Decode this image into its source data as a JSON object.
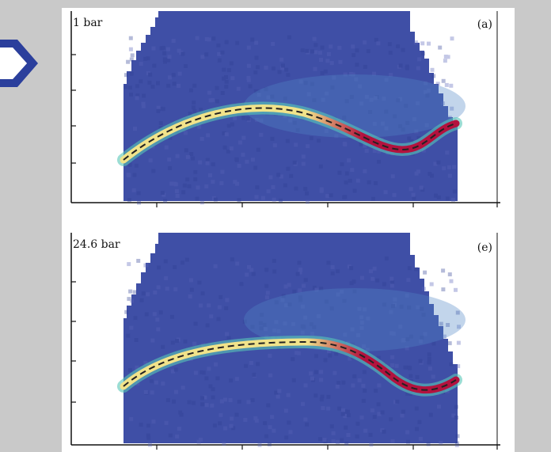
{
  "panels": [
    {
      "pressure_label": "1 bar",
      "panel_tag": "(a)",
      "colors": {
        "background": "#3f4fa6",
        "ridge_cool": "#f1e38a",
        "ridge_hot": "#b3123e",
        "fit_line": "#222222"
      }
    },
    {
      "pressure_label": "24.6 bar",
      "panel_tag": "(e)",
      "colors": {
        "background": "#3f4fa6",
        "ridge_cool": "#f1e38a",
        "ridge_hot": "#b3123e",
        "fit_line": "#222222"
      }
    }
  ],
  "nav": {
    "icon": "chevron-right-icon",
    "color": "#2b3f9c"
  }
}
